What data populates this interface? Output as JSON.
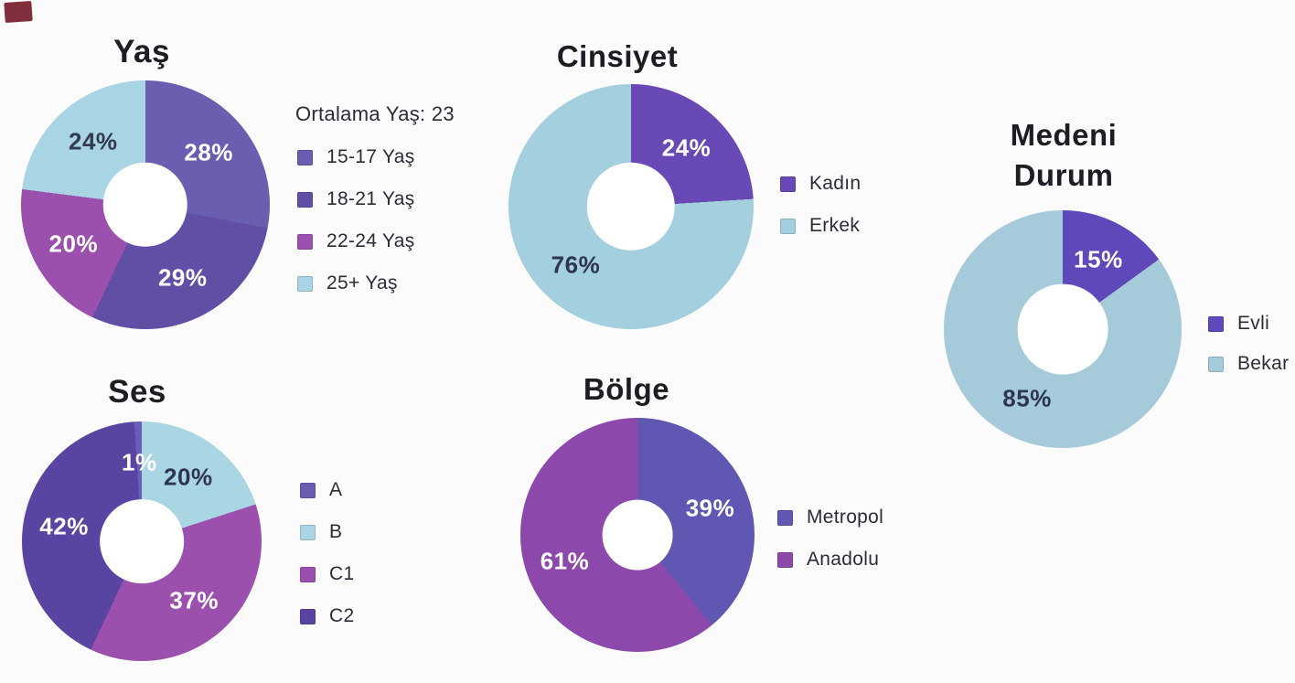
{
  "page": {
    "background": "#fcfbfb",
    "scan_mark_color": "#7b2433"
  },
  "chart_data": [
    {
      "type": "pie",
      "subtype": "donut",
      "title": "Yaş",
      "annotation": "Ortalama Yaş: 23",
      "labels": [
        "15-17 Yaş",
        "18-21 Yaş",
        "22-24 Yaş",
        "25+ Yaş"
      ],
      "values": [
        28,
        29,
        20,
        24
      ],
      "unit": "%",
      "colors": [
        "#6a5eb0",
        "#614fa6",
        "#9b50ae",
        "#a9d4e3"
      ],
      "value_label_colors": [
        "#ffffff",
        "#ffffff",
        "#ffffff",
        "#333a4d"
      ],
      "draw_order": [
        0,
        1,
        2,
        3
      ],
      "start_angle_deg": 0,
      "direction": "clockwise",
      "hole_ratio": 0.34,
      "label_radius": 0.66,
      "legend_position": "right"
    },
    {
      "type": "pie",
      "subtype": "donut",
      "title": "Cinsiyet",
      "annotation": "",
      "labels": [
        "Kadın",
        "Erkek"
      ],
      "values": [
        24,
        76
      ],
      "unit": "%",
      "colors": [
        "#6849b6",
        "#a3cfde"
      ],
      "value_label_colors": [
        "#ffffff",
        "#2e3550"
      ],
      "draw_order": [
        0,
        1
      ],
      "start_angle_deg": 0,
      "direction": "clockwise",
      "hole_ratio": 0.36,
      "label_radius": 0.66,
      "legend_position": "right"
    },
    {
      "type": "pie",
      "subtype": "donut",
      "title": "Medeni Durum",
      "annotation": "",
      "labels": [
        "Evli",
        "Bekar"
      ],
      "values": [
        15,
        85
      ],
      "unit": "%",
      "colors": [
        "#5e48ba",
        "#a5cad9"
      ],
      "value_label_colors": [
        "#ffffff",
        "#2e3550"
      ],
      "draw_order": [
        0,
        1
      ],
      "start_angle_deg": 0,
      "direction": "clockwise",
      "hole_ratio": 0.38,
      "label_radius": 0.66,
      "legend_position": "right"
    },
    {
      "type": "pie",
      "subtype": "donut",
      "title": "Ses",
      "annotation": "",
      "labels": [
        "A",
        "B",
        "C1",
        "C2"
      ],
      "values": [
        1,
        20,
        37,
        42
      ],
      "unit": "%",
      "colors": [
        "#6a5db6",
        "#aad5e2",
        "#9b50ae",
        "#5a44a2"
      ],
      "value_label_colors": [
        "#ffffff",
        "#2e3550",
        "#ffffff",
        "#ffffff"
      ],
      "draw_order": [
        1,
        2,
        3,
        0
      ],
      "start_angle_deg": 0,
      "direction": "clockwise",
      "hole_ratio": 0.35,
      "label_radius": 0.66,
      "legend_position": "right"
    },
    {
      "type": "pie",
      "subtype": "donut",
      "title": "Bölge",
      "annotation": "",
      "labels": [
        "Metropol",
        "Anadolu"
      ],
      "values": [
        39,
        61
      ],
      "unit": "%",
      "colors": [
        "#5f57b2",
        "#8d48ab"
      ],
      "value_label_colors": [
        "#ffffff",
        "#ffffff"
      ],
      "draw_order": [
        0,
        1
      ],
      "start_angle_deg": 0,
      "direction": "clockwise",
      "hole_ratio": 0.3,
      "label_radius": 0.66,
      "legend_position": "right"
    }
  ]
}
